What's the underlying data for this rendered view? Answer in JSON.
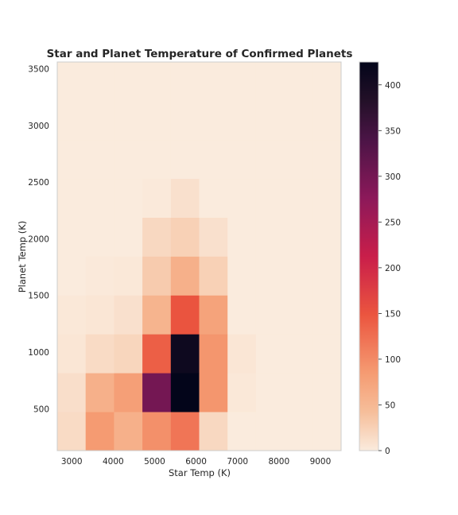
{
  "chart_data": {
    "type": "heatmap",
    "title": "Star and Planet Temperature of Confirmed Planets",
    "xlabel": "Star Temp (K)",
    "ylabel": "Planet Temp (K)",
    "xlim": [
      2650,
      9500
    ],
    "ylim": [
      130,
      3560
    ],
    "x_ticks": [
      3000,
      4000,
      5000,
      6000,
      7000,
      8000,
      9000
    ],
    "y_ticks": [
      500,
      1000,
      1500,
      2000,
      2500,
      3000,
      3500
    ],
    "x_bin_edges": [
      2650,
      3335,
      4020,
      4705,
      5390,
      6075,
      6760,
      7445,
      8130,
      8815,
      9500
    ],
    "y_bin_edges": [
      130,
      473,
      816,
      1159,
      1502,
      1845,
      2188,
      2531,
      2874,
      3217,
      3560
    ],
    "counts": [
      [
        15,
        85,
        60,
        95,
        120,
        18,
        0,
        0,
        0,
        0
      ],
      [
        12,
        60,
        80,
        300,
        425,
        90,
        3,
        0,
        0,
        0
      ],
      [
        5,
        15,
        20,
        140,
        410,
        90,
        5,
        0,
        0,
        0
      ],
      [
        3,
        5,
        10,
        55,
        150,
        75,
        0,
        0,
        0,
        0
      ],
      [
        0,
        2,
        3,
        30,
        60,
        25,
        0,
        0,
        0,
        0
      ],
      [
        0,
        0,
        0,
        18,
        25,
        10,
        0,
        0,
        0,
        0
      ],
      [
        0,
        0,
        0,
        2,
        10,
        0,
        0,
        0,
        0,
        0
      ],
      [
        0,
        0,
        0,
        0,
        0,
        0,
        0,
        0,
        0,
        0
      ],
      [
        0,
        0,
        0,
        0,
        0,
        0,
        0,
        0,
        0,
        0
      ],
      [
        0,
        0,
        0,
        0,
        0,
        0,
        0,
        0,
        0,
        0
      ]
    ],
    "colorbar": {
      "min": 0,
      "max": 425,
      "ticks": [
        0,
        50,
        100,
        150,
        200,
        250,
        300,
        350,
        400
      ],
      "colormap": "rocket_r"
    },
    "grid": false,
    "frame_color": "#cccccc"
  }
}
